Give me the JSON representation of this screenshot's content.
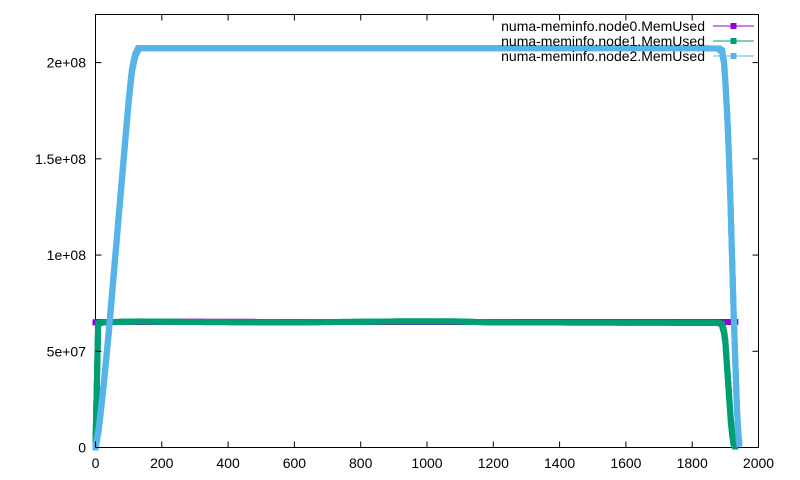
{
  "chart_data": {
    "type": "line",
    "title": "",
    "xlabel": "",
    "ylabel": "",
    "xlim": [
      0,
      2000
    ],
    "ylim": [
      0,
      225000000
    ],
    "x_ticks": [
      0,
      200,
      400,
      600,
      800,
      1000,
      1200,
      1400,
      1600,
      1800,
      2000
    ],
    "x_tick_labels": [
      "0",
      "200",
      "400",
      "600",
      "800",
      "1000",
      "1200",
      "1400",
      "1600",
      "1800",
      "2000"
    ],
    "y_ticks": [
      0,
      50000000,
      100000000,
      150000000,
      200000000
    ],
    "y_tick_labels": [
      "0",
      "5e+07",
      "1e+08",
      "1.5e+08",
      "2e+08"
    ],
    "grid": false,
    "legend_position": "top-right",
    "series": [
      {
        "name": "numa-meminfo.node0.MemUsed",
        "color": "#9400d3",
        "marker": "square",
        "points": [
          [
            0,
            65000000
          ],
          [
            10,
            65200000
          ],
          [
            50,
            65200000
          ],
          [
            100,
            65300000
          ],
          [
            300,
            65300000
          ],
          [
            600,
            65200000
          ],
          [
            900,
            65200000
          ],
          [
            1200,
            65200000
          ],
          [
            1500,
            65200000
          ],
          [
            1800,
            65200000
          ],
          [
            1900,
            65200000
          ],
          [
            1930,
            65200000
          ]
        ]
      },
      {
        "name": "numa-meminfo.node1.MemUsed",
        "color": "#009e73",
        "marker": "square",
        "points": [
          [
            0,
            0
          ],
          [
            2,
            18000000
          ],
          [
            5,
            40000000
          ],
          [
            8,
            64500000
          ],
          [
            20,
            65000000
          ],
          [
            60,
            65200000
          ],
          [
            135,
            65500000
          ],
          [
            300,
            65200000
          ],
          [
            600,
            65000000
          ],
          [
            900,
            65500000
          ],
          [
            1090,
            65500000
          ],
          [
            1200,
            65000000
          ],
          [
            1500,
            64900000
          ],
          [
            1800,
            64800000
          ],
          [
            1880,
            64800000
          ],
          [
            1890,
            64000000
          ],
          [
            1896,
            60000000
          ],
          [
            1900,
            55000000
          ],
          [
            1904,
            45000000
          ],
          [
            1908,
            35000000
          ],
          [
            1912,
            25000000
          ],
          [
            1916,
            15000000
          ],
          [
            1920,
            8000000
          ],
          [
            1924,
            3000000
          ],
          [
            1928,
            1000000
          ],
          [
            1930,
            500000
          ]
        ]
      },
      {
        "name": "numa-meminfo.node2.MemUsed",
        "color": "#56b4e9",
        "marker": "square",
        "points": [
          [
            0,
            0
          ],
          [
            10,
            10000000
          ],
          [
            20,
            25000000
          ],
          [
            30,
            42000000
          ],
          [
            40,
            60000000
          ],
          [
            50,
            80000000
          ],
          [
            60,
            100000000
          ],
          [
            70,
            120000000
          ],
          [
            80,
            140000000
          ],
          [
            90,
            160000000
          ],
          [
            100,
            180000000
          ],
          [
            110,
            196000000
          ],
          [
            120,
            204000000
          ],
          [
            130,
            207500000
          ],
          [
            300,
            207500000
          ],
          [
            600,
            207500000
          ],
          [
            900,
            207500000
          ],
          [
            1200,
            207500000
          ],
          [
            1500,
            207500000
          ],
          [
            1800,
            207500000
          ],
          [
            1880,
            207300000
          ],
          [
            1890,
            206000000
          ],
          [
            1896,
            200000000
          ],
          [
            1900,
            190000000
          ],
          [
            1905,
            175000000
          ],
          [
            1910,
            155000000
          ],
          [
            1915,
            130000000
          ],
          [
            1920,
            100000000
          ],
          [
            1925,
            70000000
          ],
          [
            1930,
            45000000
          ],
          [
            1935,
            20000000
          ],
          [
            1940,
            5000000
          ],
          [
            1942,
            2000000
          ]
        ]
      }
    ]
  }
}
